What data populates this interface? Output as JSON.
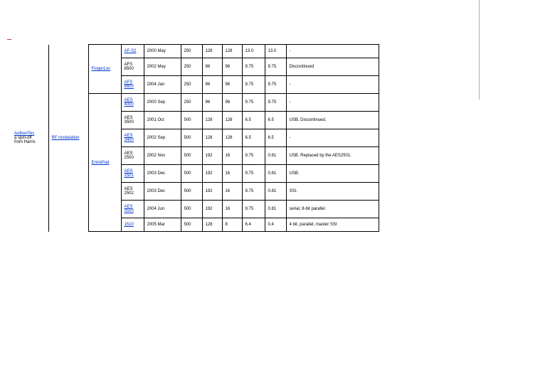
{
  "leftHeader": {
    "company": "AuthenTec",
    "note1": "a spin-off",
    "note2": "from Harris"
  },
  "method": "RF modulation",
  "series": [
    {
      "name": "FingerLoc",
      "link": true
    },
    {
      "name": "EntréPad",
      "link": true
    }
  ],
  "rows": [
    {
      "code": "AF-S2",
      "codeLink": true,
      "date": "2000 May",
      "c5": "250",
      "c6": "128",
      "c7": "128",
      "c8": "13.0",
      "c9": "13.0",
      "note": "-"
    },
    {
      "code": "AFS 8500",
      "codeLink": false,
      "date": "2002 May",
      "c5": "250",
      "c6": "96",
      "c7": "96",
      "c8": "9.75",
      "c9": "9.75",
      "note": "Discontinued"
    },
    {
      "code": "AFS 8600",
      "codeLink": true,
      "date": "2004 Jan",
      "c5": "250",
      "c6": "96",
      "c7": "96",
      "c8": "9.75",
      "c9": "9.75",
      "note": "-"
    },
    {
      "code": "AES 4000",
      "codeLink": true,
      "date": "2000 Sep",
      "c5": "250",
      "c6": "96",
      "c7": "96",
      "c8": "9.75",
      "c9": "9.75",
      "note": "-"
    },
    {
      "code": "AES 3500",
      "codeLink": false,
      "date": "2001 Oct",
      "c5": "500",
      "c6": "128",
      "c7": "128",
      "c8": "6.5",
      "c9": "6.5",
      "note": "USB. Discontinued."
    },
    {
      "code": "AES 3400",
      "codeLink": true,
      "date": "2002 Sep",
      "c5": "500",
      "c6": "128",
      "c7": "128",
      "c8": "6.5",
      "c9": "6.5",
      "note": "-"
    },
    {
      "code": "AES 2500",
      "codeLink": false,
      "date": "2002 Nov",
      "c5": "500",
      "c6": "192",
      "c7": "16",
      "c8": "9.75",
      "c9": "0.81",
      "note": "USB. Replaced by the AES2501."
    },
    {
      "code": "AES 2501",
      "codeLink": true,
      "date": "2003 Dec",
      "c5": "500",
      "c6": "192",
      "c7": "16",
      "c8": "9.75",
      "c9": "0.81",
      "note": "USB."
    },
    {
      "code": "AES 2502",
      "codeLink": false,
      "date": "2003 Dec",
      "c5": "500",
      "c6": "192",
      "c7": "16",
      "c8": "9.75",
      "c9": "0.81",
      "note": "SSI."
    },
    {
      "code": "AES 2510",
      "codeLink": true,
      "date": "2004 Jun",
      "c5": "500",
      "c6": "192",
      "c7": "16",
      "c8": "9.75",
      "c9": "0.81",
      "note": "serial, 8-bit parallel"
    },
    {
      "code": "1510",
      "codeLink": true,
      "date": "2005 Mar",
      "c5": "500",
      "c6": "128",
      "c7": "8",
      "c8": "6.4",
      "c9": "0.4",
      "note": "4 bit, parallel, master SSI"
    }
  ],
  "seriesRowSpans": {
    "0": 3,
    "1": 8
  },
  "colors": {
    "link": "#0033cc",
    "border": "#000000"
  }
}
